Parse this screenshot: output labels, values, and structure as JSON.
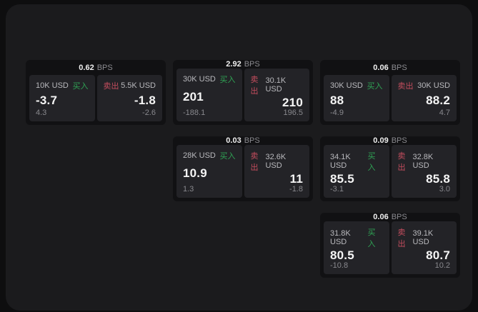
{
  "labels": {
    "bps": "BPS",
    "buy": "买入",
    "sell": "卖出"
  },
  "colors": {
    "buy": "#2fa254",
    "sell": "#c44d5e",
    "panel_bg": "#1b1b1d",
    "card_bg": "#111113",
    "tile_bg": "#232327"
  },
  "cards": [
    {
      "bps": "0.62",
      "buy": {
        "amount": "10K USD",
        "price": "-3.7",
        "delta": "4.3"
      },
      "sell": {
        "amount": "5.5K USD",
        "price": "-1.8",
        "delta": "-2.6"
      }
    },
    {
      "bps": "2.92",
      "buy": {
        "amount": "30K USD",
        "price": "201",
        "delta": "-188.1"
      },
      "sell": {
        "amount": "30.1K USD",
        "price": "210",
        "delta": "196.5"
      }
    },
    {
      "bps": "0.06",
      "buy": {
        "amount": "30K USD",
        "price": "88",
        "delta": "-4.9"
      },
      "sell": {
        "amount": "30K USD",
        "price": "88.2",
        "delta": "4.7"
      }
    },
    {
      "bps": "0.03",
      "buy": {
        "amount": "28K USD",
        "price": "10.9",
        "delta": "1.3"
      },
      "sell": {
        "amount": "32.6K USD",
        "price": "11",
        "delta": "-1.8"
      }
    },
    {
      "bps": "0.09",
      "buy": {
        "amount": "34.1K USD",
        "price": "85.5",
        "delta": "-3.1"
      },
      "sell": {
        "amount": "32.8K USD",
        "price": "85.8",
        "delta": "3.0"
      }
    },
    {
      "bps": "0.06",
      "buy": {
        "amount": "31.8K USD",
        "price": "80.5",
        "delta": "-10.8"
      },
      "sell": {
        "amount": "39.1K USD",
        "price": "80.7",
        "delta": "10.2"
      }
    }
  ]
}
